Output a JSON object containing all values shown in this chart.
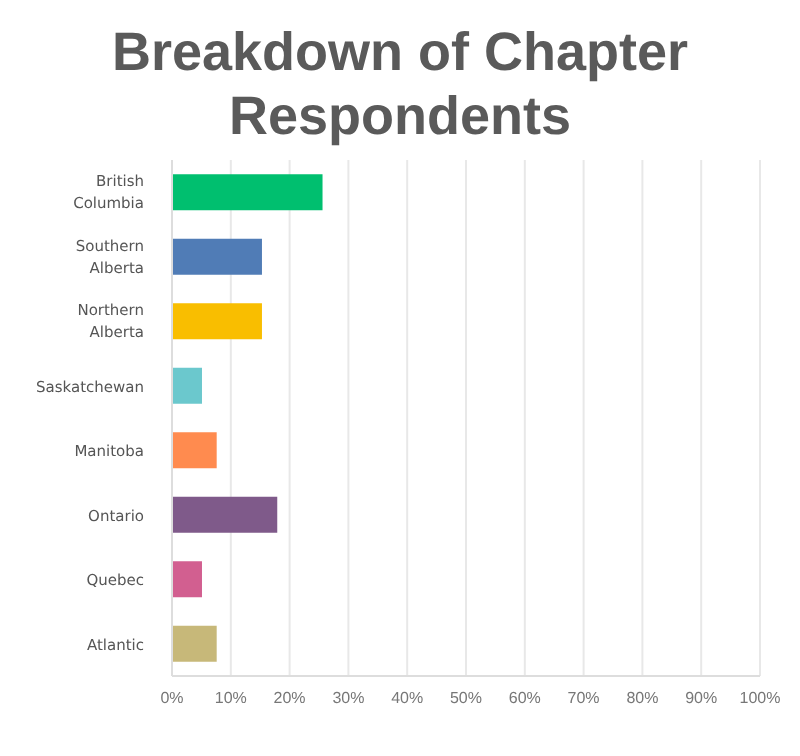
{
  "chart_data": {
    "type": "bar",
    "orientation": "horizontal",
    "title": "Breakdown of Chapter Respondents",
    "categories": [
      "British Columbia",
      "Southern Alberta",
      "Northern Alberta",
      "Saskatchewan",
      "Manitoba",
      "Ontario",
      "Quebec",
      "Atlantic"
    ],
    "values": [
      25.6,
      15.3,
      15.3,
      5.1,
      7.6,
      17.9,
      5.1,
      7.6
    ],
    "colors": [
      "#00bf6f",
      "#507cb6",
      "#f9be00",
      "#6bc8cd",
      "#ff8b4f",
      "#7f5a8a",
      "#d25f90",
      "#c7b879"
    ],
    "xlim": [
      0,
      100
    ],
    "xticks": [
      {
        "value": 0,
        "label": "0%"
      },
      {
        "value": 10,
        "label": "10%"
      },
      {
        "value": 20,
        "label": "20%"
      },
      {
        "value": 30,
        "label": "30%"
      },
      {
        "value": 40,
        "label": "40%"
      },
      {
        "value": 50,
        "label": "50%"
      },
      {
        "value": 60,
        "label": "60%"
      },
      {
        "value": 70,
        "label": "70%"
      },
      {
        "value": 80,
        "label": "80%"
      },
      {
        "value": 90,
        "label": "90%"
      },
      {
        "value": 100,
        "label": "100%"
      }
    ],
    "grid": "x"
  }
}
